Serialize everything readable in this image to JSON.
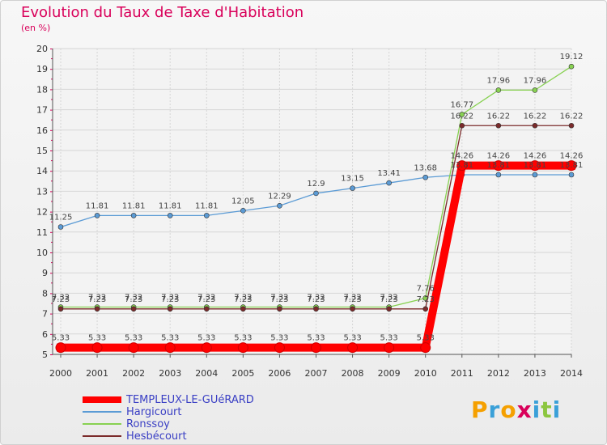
{
  "title": "Evolution du Taux de Taxe d'Habitation",
  "unit_label": "(en %)",
  "logo": {
    "text": "Proxiti",
    "letters": [
      "P",
      "r",
      "o",
      "x",
      "i",
      "t",
      "i"
    ],
    "colors": [
      "#f5a000",
      "#3aa0d8",
      "#f5a000",
      "#d9005a",
      "#3aa0d8",
      "#8cc63f",
      "#3aa0d8"
    ]
  },
  "chart_data": {
    "type": "line",
    "x": [
      "2000",
      "2001",
      "2002",
      "2003",
      "2004",
      "2005",
      "2006",
      "2007",
      "2008",
      "2009",
      "2010",
      "2011",
      "2012",
      "2013",
      "2014"
    ],
    "ylim": [
      5,
      20
    ],
    "yticks": [
      5,
      6,
      7,
      8,
      9,
      10,
      11,
      12,
      13,
      14,
      15,
      16,
      17,
      18,
      19,
      20
    ],
    "grid": true,
    "legend_position": "bottom-left",
    "series": [
      {
        "name": "TEMPLEUX-LE-GUéRARD",
        "color": "#ff0000",
        "values": [
          5.33,
          5.33,
          5.33,
          5.33,
          5.33,
          5.33,
          5.33,
          5.33,
          5.33,
          5.33,
          5.33,
          14.26,
          14.26,
          14.26,
          14.26
        ],
        "labels": [
          "5.33",
          "5.33",
          "5.33",
          "5.33",
          "5.33",
          "5.33",
          "5.33",
          "5.33",
          "5.33",
          "5.33",
          "5.33",
          "14.26",
          "14.26",
          "14.26",
          "14.26"
        ]
      },
      {
        "name": "Hargicourt",
        "color": "#5b9bd5",
        "values": [
          11.25,
          11.81,
          11.81,
          11.81,
          11.81,
          12.05,
          12.29,
          12.9,
          13.15,
          13.41,
          13.68,
          13.81,
          13.81,
          13.81,
          13.81
        ],
        "labels": [
          "11.25",
          "11.81",
          "11.81",
          "11.81",
          "11.81",
          "12.05",
          "12.29",
          "12.9",
          "13.15",
          "13.41",
          "13.68",
          "13.81",
          "13.81",
          "13.81",
          "13.81"
        ]
      },
      {
        "name": "Ronssoy",
        "color": "#88d152",
        "values": [
          7.32,
          7.32,
          7.32,
          7.32,
          7.32,
          7.32,
          7.32,
          7.32,
          7.32,
          7.32,
          7.76,
          16.77,
          17.96,
          17.96,
          19.12
        ],
        "labels": [
          "7.32",
          "7.32",
          "7.32",
          "7.32",
          "7.32",
          "7.32",
          "7.32",
          "7.32",
          "7.32",
          "7.32",
          "7.76",
          "16.77",
          "17.96",
          "17.96",
          "19.12"
        ]
      },
      {
        "name": "Hesbécourt",
        "color": "#7b2b2b",
        "values": [
          7.23,
          7.23,
          7.23,
          7.23,
          7.23,
          7.23,
          7.23,
          7.23,
          7.23,
          7.23,
          7.23,
          16.22,
          16.22,
          16.22,
          16.22
        ],
        "labels": [
          "7.23",
          "7.23",
          "7.23",
          "7.23",
          "7.23",
          "7.23",
          "7.23",
          "7.23",
          "7.23",
          "7.23",
          "7.23",
          "16.22",
          "16.22",
          "16.22",
          "16.22"
        ]
      }
    ]
  }
}
